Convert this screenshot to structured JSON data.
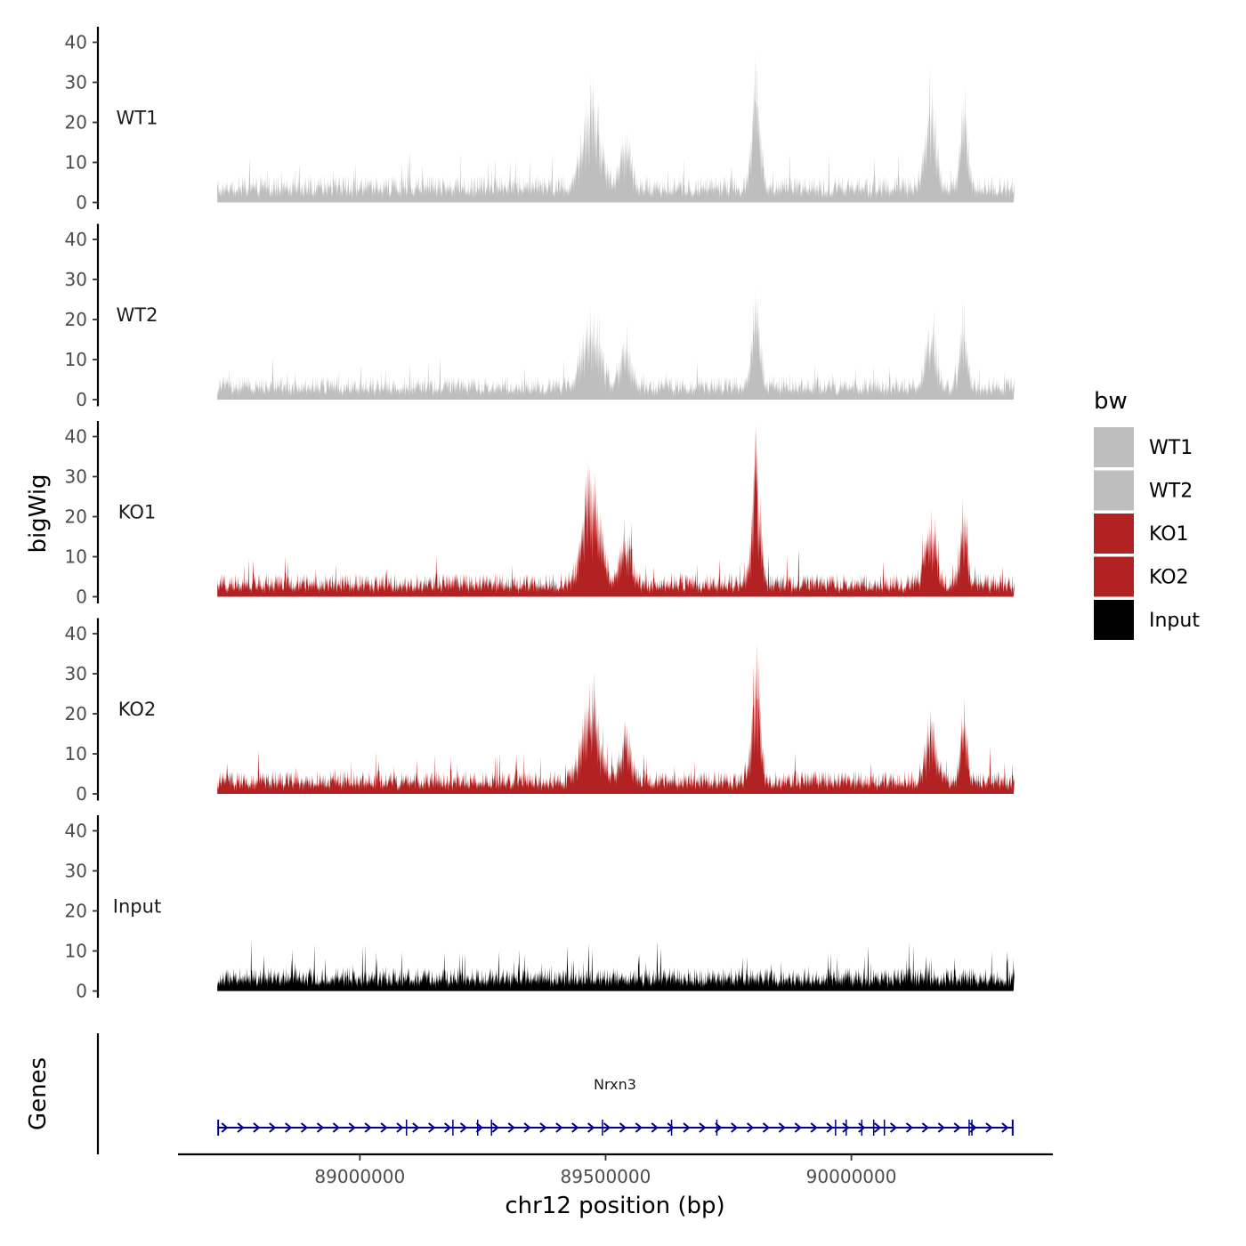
{
  "chart_data": {
    "type": "area",
    "title": "",
    "ylabel": "bigWig",
    "genes_label": "Genes",
    "xlabel": "chr12 position (bp)",
    "xlim": [
      88630000,
      90410000
    ],
    "data_range": [
      88710000,
      90330000
    ],
    "ylim": [
      0,
      43
    ],
    "y_ticks": [
      0,
      10,
      20,
      30,
      40
    ],
    "x_ticks": [
      {
        "value": 89000000,
        "label": "89000000"
      },
      {
        "value": 89500000,
        "label": "89500000"
      },
      {
        "value": 90000000,
        "label": "90000000"
      }
    ],
    "tracks": [
      {
        "name": "WT1",
        "color": "#bebebe",
        "baseline": 7,
        "noise": 5,
        "peaks": [
          {
            "x": 89470000,
            "y": 28,
            "w": 25000
          },
          {
            "x": 89540000,
            "y": 17,
            "w": 15000
          },
          {
            "x": 89805000,
            "y": 33,
            "w": 12000
          },
          {
            "x": 90160000,
            "y": 29,
            "w": 15000
          },
          {
            "x": 90228000,
            "y": 31,
            "w": 10000
          }
        ]
      },
      {
        "name": "WT2",
        "color": "#bebebe",
        "baseline": 6,
        "noise": 4,
        "peaks": [
          {
            "x": 89470000,
            "y": 21,
            "w": 25000
          },
          {
            "x": 89540000,
            "y": 14,
            "w": 15000
          },
          {
            "x": 89805000,
            "y": 28,
            "w": 12000
          },
          {
            "x": 90160000,
            "y": 18,
            "w": 15000
          },
          {
            "x": 90228000,
            "y": 21,
            "w": 10000
          }
        ]
      },
      {
        "name": "KO1",
        "color": "#b22222",
        "baseline": 6,
        "noise": 5,
        "peaks": [
          {
            "x": 89470000,
            "y": 32,
            "w": 25000
          },
          {
            "x": 89540000,
            "y": 15,
            "w": 15000
          },
          {
            "x": 89805000,
            "y": 41,
            "w": 12000
          },
          {
            "x": 90160000,
            "y": 21,
            "w": 15000
          },
          {
            "x": 90228000,
            "y": 22,
            "w": 10000
          }
        ]
      },
      {
        "name": "KO2",
        "color": "#b22222",
        "baseline": 6,
        "noise": 5,
        "peaks": [
          {
            "x": 89470000,
            "y": 27,
            "w": 25000
          },
          {
            "x": 89540000,
            "y": 15,
            "w": 15000
          },
          {
            "x": 89805000,
            "y": 37,
            "w": 12000
          },
          {
            "x": 90160000,
            "y": 19,
            "w": 15000
          },
          {
            "x": 90228000,
            "y": 20,
            "w": 10000
          }
        ]
      },
      {
        "name": "Input",
        "color": "#000000",
        "baseline": 6,
        "noise": 5,
        "peaks": []
      }
    ],
    "legend": {
      "title": "bw",
      "position": "right",
      "entries": [
        {
          "label": "WT1",
          "color": "#bebebe"
        },
        {
          "label": "WT2",
          "color": "#bebebe"
        },
        {
          "label": "KO1",
          "color": "#b22222"
        },
        {
          "label": "KO2",
          "color": "#b22222"
        },
        {
          "label": "Input",
          "color": "#000000"
        }
      ]
    },
    "gene": {
      "name": "Nrxn3",
      "start": 88710000,
      "end": 90330000,
      "strand": "+",
      "color": "#00008b",
      "arrow_count": 50
    }
  }
}
